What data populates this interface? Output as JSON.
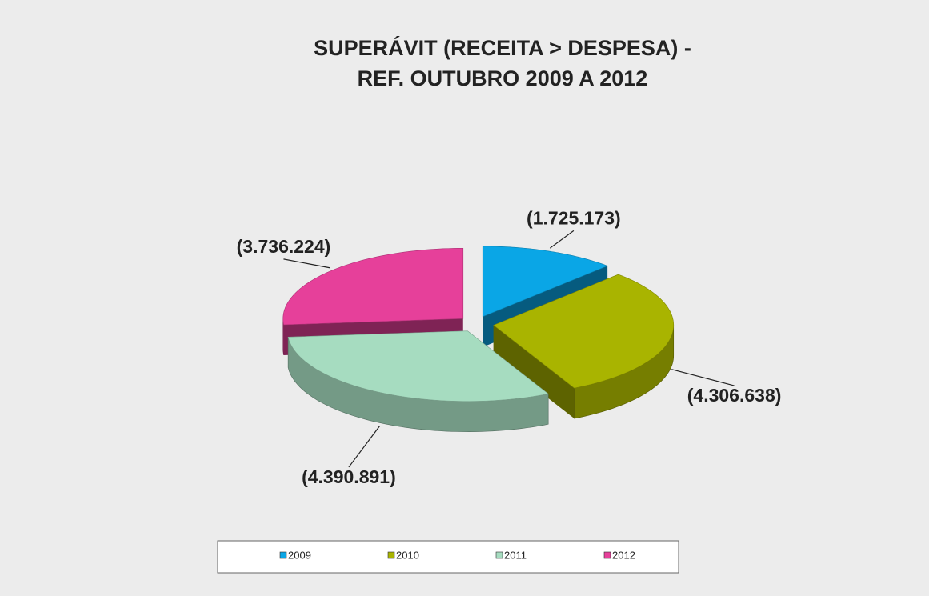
{
  "chart_data": {
    "type": "pie3d",
    "title": [
      "SUPERÁVIT (RECEITA > DESPESA) -",
      "REF.  OUTUBRO 2009 A 2012"
    ],
    "categories": [
      "2009",
      "2010",
      "2011",
      "2012"
    ],
    "values": [
      1725173,
      4306638,
      4390891,
      3736224
    ],
    "value_labels": [
      "(1.725.173)",
      "(4.306.638)",
      "(4.390.891)",
      "(3.736.224)"
    ],
    "colors": [
      "#0aa6e6",
      "#a9b400",
      "#a6dcc0",
      "#e6409a"
    ],
    "legend": "bottom"
  }
}
